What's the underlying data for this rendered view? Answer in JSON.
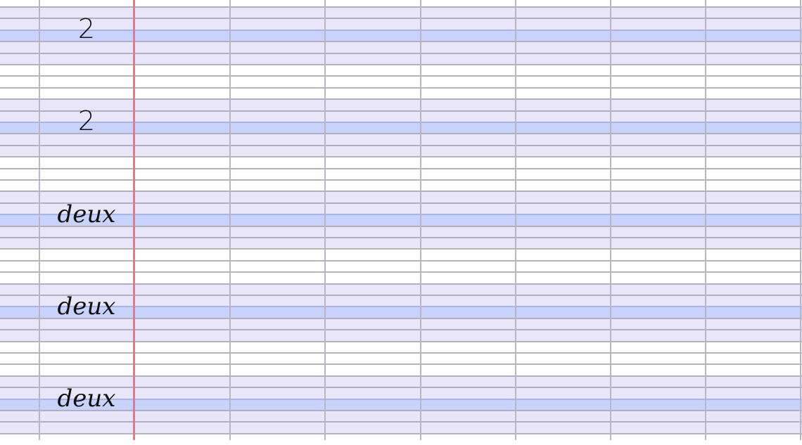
{
  "worksheet": {
    "paper": "seyes-ruled",
    "colors": {
      "band": "#e8e6f8",
      "baseline_band": "#c8d2fb",
      "margin_line": "#ee7486",
      "grid_line": "#b0aebf"
    },
    "entries": [
      {
        "text": "2",
        "kind": "digit"
      },
      {
        "text": "2",
        "kind": "digit"
      },
      {
        "text": "deux",
        "kind": "word"
      },
      {
        "text": "deux",
        "kind": "word"
      },
      {
        "text": "deux",
        "kind": "word"
      }
    ]
  }
}
